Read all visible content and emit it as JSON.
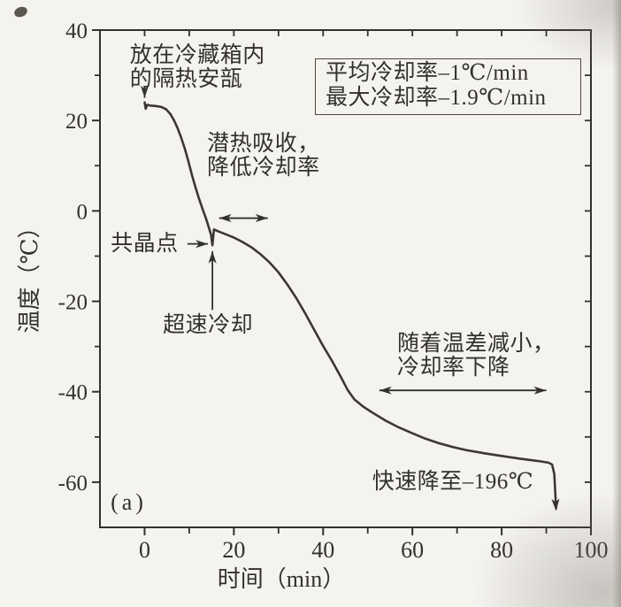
{
  "figure": {
    "paper_color": "#f5f3ee",
    "ink_color": "#33312d",
    "curve_color": "#3b3833"
  },
  "chart_data": {
    "type": "line",
    "title": "",
    "xlabel": "时间（min）",
    "ylabel": "温度（℃）",
    "xlim": [
      -10,
      100
    ],
    "ylim": [
      -70,
      40
    ],
    "grid": false,
    "x_ticks": [
      {
        "v": 0,
        "label": "0"
      },
      {
        "v": 20,
        "label": "20"
      },
      {
        "v": 40,
        "label": "40"
      },
      {
        "v": 60,
        "label": "60"
      },
      {
        "v": 80,
        "label": "80"
      },
      {
        "v": 100,
        "label": "100"
      }
    ],
    "x_minor_ticks": [
      10,
      30,
      50,
      70,
      90
    ],
    "y_ticks": [
      {
        "v": 40,
        "label": "40"
      },
      {
        "v": 20,
        "label": "20"
      },
      {
        "v": 0,
        "label": "0"
      },
      {
        "v": -20,
        "label": "-20"
      },
      {
        "v": -40,
        "label": "-40"
      },
      {
        "v": -60,
        "label": "-60"
      }
    ],
    "y_minor_ticks": [
      30,
      10,
      -10,
      -30,
      -50
    ],
    "top_ticks": [
      0,
      10,
      20,
      30,
      40,
      50,
      60,
      70,
      80,
      90,
      100
    ],
    "right_ticks": [
      30,
      20,
      10,
      0,
      -10,
      -20,
      -30,
      -40,
      -50,
      -60
    ],
    "series": [
      {
        "id": "cooling-curve",
        "points": [
          [
            0,
            24.0
          ],
          [
            0.25,
            22.6
          ],
          [
            0.6,
            23.5
          ],
          [
            1.2,
            23.3
          ],
          [
            2.5,
            23.2
          ],
          [
            3.8,
            23.0
          ],
          [
            4.8,
            22.5
          ],
          [
            5.8,
            21.4
          ],
          [
            6.6,
            20.0
          ],
          [
            7.4,
            18.3
          ],
          [
            8.2,
            16.2
          ],
          [
            9.0,
            13.8
          ],
          [
            9.8,
            11.0
          ],
          [
            10.6,
            8.0
          ],
          [
            11.4,
            5.2
          ],
          [
            12.2,
            2.7
          ],
          [
            13.0,
            0.4
          ],
          [
            13.8,
            -1.8
          ],
          [
            14.5,
            -4.0
          ],
          [
            14.9,
            -5.3
          ],
          [
            15.2,
            -7.6
          ],
          [
            15.55,
            -4.1
          ],
          [
            16.5,
            -4.5
          ],
          [
            18,
            -5.1
          ],
          [
            20,
            -5.9
          ],
          [
            22,
            -6.9
          ],
          [
            24,
            -8.1
          ],
          [
            26,
            -9.6
          ],
          [
            28,
            -11.4
          ],
          [
            30,
            -13.6
          ],
          [
            32,
            -16.3
          ],
          [
            34,
            -19.3
          ],
          [
            36,
            -22.7
          ],
          [
            38,
            -26.3
          ],
          [
            40,
            -29.9
          ],
          [
            42,
            -33.2
          ],
          [
            44,
            -36.8
          ],
          [
            45.5,
            -39.6
          ],
          [
            47,
            -41.7
          ],
          [
            49,
            -43.3
          ],
          [
            51,
            -44.6
          ],
          [
            54,
            -46.4
          ],
          [
            57,
            -47.9
          ],
          [
            60,
            -49.2
          ],
          [
            63,
            -50.4
          ],
          [
            66,
            -51.4
          ],
          [
            69,
            -52.2
          ],
          [
            72,
            -52.9
          ],
          [
            76,
            -53.6
          ],
          [
            80,
            -54.2
          ],
          [
            84,
            -54.8
          ],
          [
            88,
            -55.3
          ],
          [
            90.5,
            -55.7
          ],
          [
            91.3,
            -56.1
          ],
          [
            91.8,
            -58.2
          ],
          [
            92.2,
            -65.8
          ]
        ],
        "end_arrow": true
      }
    ],
    "average_cooling_rate_line": "平均冷却率–1℃/min",
    "max_cooling_rate_line": "最大冷却率–1.9℃/min",
    "legend_note": {
      "lines": [
        "平均冷却率–1℃/min",
        "最大冷却率–1.9℃/min"
      ],
      "position": "top-right-inside"
    },
    "annotations": [
      {
        "id": "ampoule",
        "text": "放在冷藏箱内\n的隔热安瓿",
        "t": -3.3,
        "T": 37.0
      },
      {
        "id": "latent",
        "text": "潜热吸收，\n降低冷却率",
        "t": 14.0,
        "T": 17.5
      },
      {
        "id": "eutectic",
        "text": "共晶点",
        "t": -7.6,
        "T": -4.6
      },
      {
        "id": "supercool",
        "text": "超速冷却",
        "t": 4.1,
        "T": -22.6
      },
      {
        "id": "tempdiff",
        "text": "随着温差减小，\n冷却率下降",
        "t": 56.6,
        "T": -26.7
      },
      {
        "id": "rapid",
        "text": "快速降至–196℃",
        "t": 51.0,
        "T": -57.3
      },
      {
        "id": "panel",
        "text": "(a)",
        "t": -7.6,
        "T": -61.8
      }
    ],
    "arrows": [
      {
        "id": "ampoule-pointer",
        "x1": 0,
        "y1": 27.6,
        "x2": 0,
        "y2": 25.0,
        "heads": "end"
      },
      {
        "id": "eutectic-pointer",
        "x1": 9.6,
        "y1": -7.3,
        "x2": 14.2,
        "y2": -7.3,
        "heads": "end"
      },
      {
        "id": "supercool-pointer",
        "x1": 15.2,
        "y1": -21.9,
        "x2": 15.2,
        "y2": -8.9,
        "heads": "end"
      },
      {
        "id": "latent-span",
        "x1": 16.7,
        "y1": -1.6,
        "x2": 27.6,
        "y2": -1.6,
        "heads": "both"
      },
      {
        "id": "tempdiff-span",
        "x1": 52.6,
        "y1": -39.7,
        "x2": 90.0,
        "y2": -39.7,
        "heads": "both"
      }
    ]
  }
}
